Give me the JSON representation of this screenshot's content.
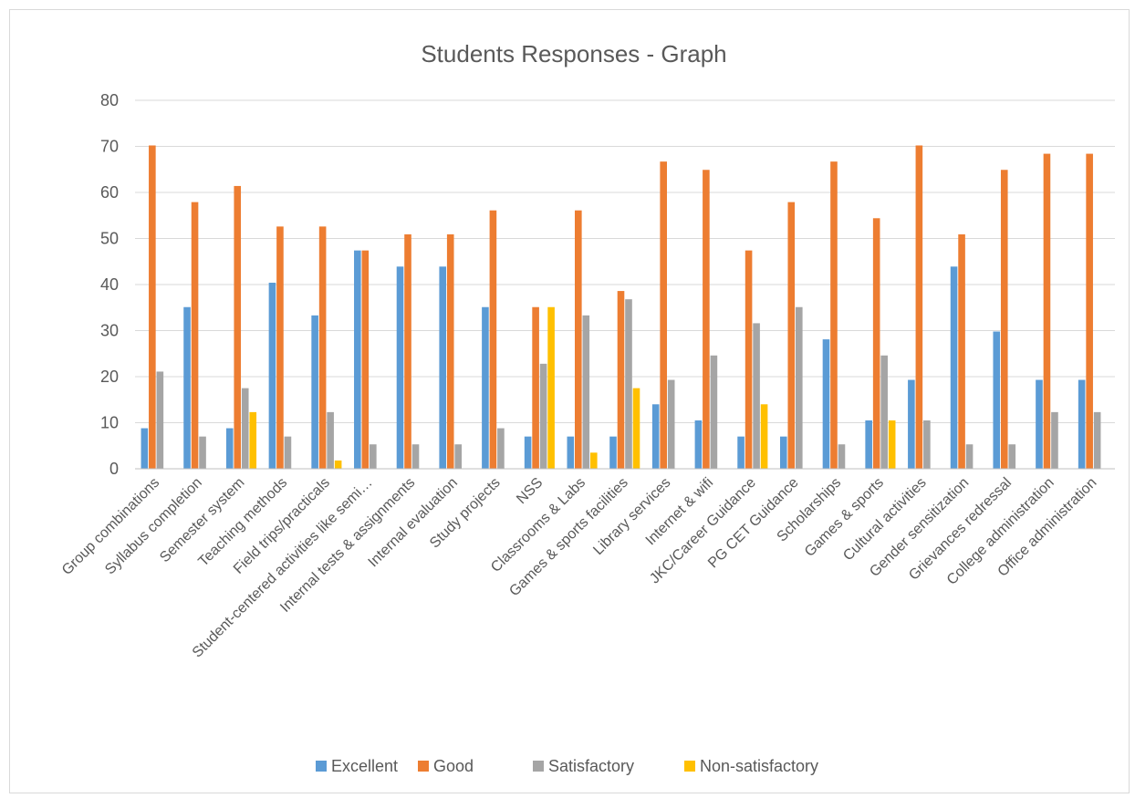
{
  "chart_data": {
    "type": "bar",
    "title": "Students Responses - Graph",
    "xlabel": "",
    "ylabel": "",
    "ylim": [
      0,
      80
    ],
    "y_ticks": [
      "0",
      "10",
      "20",
      "30",
      "40",
      "50",
      "60",
      "70",
      "80"
    ],
    "grid": true,
    "legend_position": "bottom",
    "categories": [
      "Group combinations",
      "Syllabus completion",
      "Semester system",
      "Teaching methods",
      "Field trips/practicals",
      "Student-centered activities like semi…",
      "Internal tests & assignments",
      "Internal evaluation",
      "Study projects",
      "NSS",
      "Classrooms & Labs",
      "Games & sports facilities",
      "Library services",
      "Internet & wifi",
      "JKC/Career Guidance",
      "PG CET Guidance",
      "Scholarships",
      "Games & sports",
      "Cultural activities",
      "Gender sensitization",
      "Grievances redressal",
      "College administration",
      "Office administration"
    ],
    "series": [
      {
        "name": "Excellent",
        "color": "#5b9bd5",
        "values": [
          8.8,
          35.1,
          8.8,
          40.4,
          33.3,
          47.4,
          43.9,
          43.9,
          35.1,
          7.0,
          7.0,
          7.0,
          14.0,
          10.5,
          7.0,
          7.0,
          28.1,
          10.5,
          19.3,
          43.9,
          29.8,
          19.3,
          19.3
        ]
      },
      {
        "name": "Good",
        "color": "#ed7d31",
        "values": [
          70.2,
          57.9,
          61.4,
          52.6,
          52.6,
          47.4,
          50.9,
          50.9,
          56.1,
          35.1,
          56.1,
          38.6,
          66.7,
          64.9,
          47.4,
          57.9,
          66.7,
          54.4,
          70.2,
          50.9,
          64.9,
          68.4,
          68.4
        ]
      },
      {
        "name": "Satisfactory",
        "color": "#a5a5a5",
        "values": [
          21.1,
          7.0,
          17.5,
          7.0,
          12.3,
          5.3,
          5.3,
          5.3,
          8.8,
          22.8,
          33.3,
          36.8,
          19.3,
          24.6,
          31.6,
          35.1,
          5.3,
          24.6,
          10.5,
          5.3,
          5.3,
          12.3,
          12.3
        ]
      },
      {
        "name": "Non-satisfactory",
        "color": "#ffc000",
        "values": [
          0,
          0,
          12.3,
          0,
          1.8,
          0,
          0,
          0,
          0,
          35.1,
          3.5,
          17.5,
          0,
          0,
          14.0,
          0,
          0,
          10.5,
          0,
          0,
          0,
          0,
          0
        ]
      }
    ]
  }
}
